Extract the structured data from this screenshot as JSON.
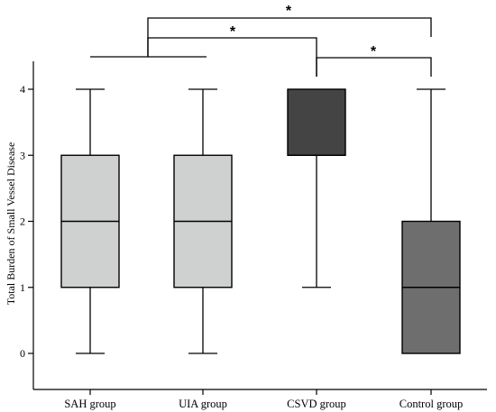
{
  "chart_data": {
    "type": "boxplot",
    "title": "",
    "xlabel": "",
    "ylabel": "Total Burden of Small Vessel Disease",
    "ylim": [
      -0.3,
      4.5
    ],
    "yticks": [
      "0",
      "1",
      "2",
      "3",
      "4"
    ],
    "grid": false,
    "categories": [
      "SAH group",
      "UIA group",
      "CSVD group",
      "Control group"
    ],
    "boxes": [
      {
        "min": 0,
        "q1": 1,
        "median": 2,
        "q3": 3,
        "max": 4,
        "fill": "#cfd1d1"
      },
      {
        "min": 0,
        "q1": 1,
        "median": 2,
        "q3": 3,
        "max": 4,
        "fill": "#cfd1d1"
      },
      {
        "min": 1,
        "q1": 3,
        "median": 3,
        "q3": 4,
        "max": 4,
        "fill": "#444444"
      },
      {
        "min": 0,
        "q1": 0,
        "median": 1,
        "q3": 2,
        "max": 4,
        "fill": "#6e6e6e"
      }
    ],
    "significance": [
      {
        "from": "SAH group + UIA group",
        "to": "Control group",
        "label": "*"
      },
      {
        "from": "SAH group + UIA group",
        "to": "CSVD group",
        "label": "*"
      },
      {
        "from": "CSVD group",
        "to": "Control group",
        "label": "*"
      }
    ]
  }
}
